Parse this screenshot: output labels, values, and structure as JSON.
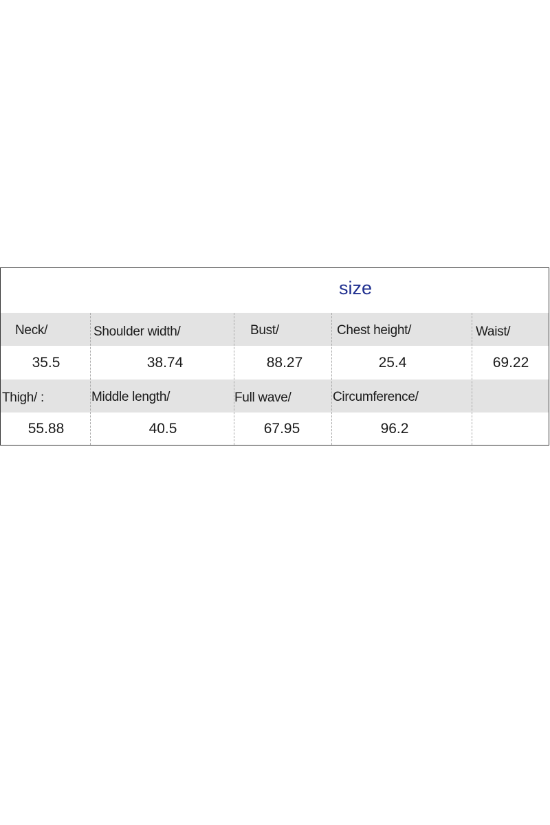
{
  "title": "size",
  "rows": [
    {
      "headers": [
        "Neck/",
        "Shoulder width/",
        "Bust/",
        "Chest height/",
        "Waist/"
      ],
      "values": [
        "35.5",
        "38.74",
        "88.27",
        "25.4",
        "69.22"
      ]
    },
    {
      "headers": [
        "Thigh/ :",
        "Middle length/",
        "Full wave/",
        "Circumference/",
        ""
      ],
      "values": [
        "55.88",
        "40.5",
        "67.95",
        "96.2",
        ""
      ]
    }
  ],
  "colors": {
    "title": "#1f2f8f",
    "header_band": "#e3e3e3",
    "border": "#333333"
  }
}
